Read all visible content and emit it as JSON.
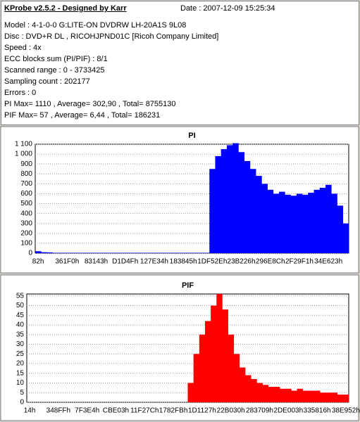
{
  "header": {
    "title": "KProbe v2.5.2 - Designed by Karr",
    "date": "Date : 2007-12-09 15:25:34",
    "lines": [
      "Model : 4-1-0-0 G:LITE-ON DVDRW LH-20A1S   9L08",
      "Disc : DVD+R DL , RICOHJPND01C [Ricoh Company Limited]",
      "Speed : 4x",
      "ECC blocks sum (PI/PIF) : 8/1",
      "Scanned range : 0 - 3733425",
      "Sampling count : 202177",
      "Errors : 0",
      "PI Max= 1110 , Average= 302,90 , Total= 8755130",
      "PIF Max= 57 , Average= 6,44 , Total= 186231"
    ]
  },
  "chart_data": [
    {
      "type": "bar",
      "title": "PI",
      "color": "#0000ff",
      "grid": true,
      "categories": [
        "82h",
        null,
        null,
        null,
        null,
        "361F0h",
        null,
        null,
        null,
        null,
        "83143h",
        null,
        null,
        null,
        null,
        "D1D4Fh",
        null,
        null,
        null,
        null,
        "127E34h",
        null,
        null,
        null,
        null,
        "183845h",
        null,
        null,
        null,
        null,
        "1DF52Eh",
        null,
        null,
        null,
        null,
        "23B226h",
        null,
        null,
        null,
        null,
        "296E8Ch",
        null,
        null,
        null,
        null,
        "2F29F1h",
        null,
        null,
        null,
        null,
        "34E623h",
        null,
        null,
        null
      ],
      "values": [
        20,
        10,
        8,
        4,
        4,
        4,
        4,
        4,
        4,
        4,
        4,
        4,
        4,
        4,
        4,
        4,
        4,
        4,
        4,
        4,
        4,
        4,
        4,
        4,
        4,
        4,
        4,
        4,
        4,
        4,
        850,
        980,
        1050,
        1090,
        1110,
        1020,
        930,
        850,
        780,
        700,
        640,
        600,
        620,
        590,
        580,
        600,
        590,
        610,
        640,
        660,
        690,
        600,
        480,
        300
      ],
      "ylim": [
        0,
        1100
      ],
      "yticks": [
        0,
        100,
        200,
        300,
        400,
        500,
        600,
        700,
        800,
        900,
        {
          "value": 1000,
          "label": "1 000"
        },
        {
          "value": 1100,
          "label": "1 100"
        }
      ]
    },
    {
      "type": "bar",
      "title": "PIF",
      "color": "#ff0000",
      "grid": true,
      "categories": [
        "14h",
        null,
        null,
        null,
        null,
        "348FFh",
        null,
        null,
        null,
        null,
        "7F3E4h",
        null,
        null,
        null,
        null,
        "CBE03h",
        null,
        null,
        null,
        null,
        "11F27Ch",
        null,
        null,
        null,
        null,
        "1782FBh",
        null,
        null,
        null,
        null,
        "1D1127h",
        null,
        null,
        null,
        null,
        "22B030h",
        null,
        null,
        null,
        null,
        "283709h",
        null,
        null,
        null,
        null,
        "2DE003h",
        null,
        null,
        null,
        null,
        "335816h",
        null,
        null,
        null,
        null,
        "38E952h"
      ],
      "values": [
        0,
        0,
        0,
        0,
        0,
        0,
        0,
        0,
        0,
        0,
        0,
        0,
        0,
        0,
        0,
        0,
        0,
        0,
        0,
        0,
        0,
        0,
        0,
        0,
        0,
        0,
        0,
        0,
        10,
        25,
        35,
        42,
        50,
        56,
        48,
        35,
        25,
        18,
        14,
        12,
        10,
        9,
        8,
        8,
        7,
        7,
        6,
        7,
        6,
        6,
        6,
        5,
        5,
        5,
        4,
        4
      ],
      "ylim": [
        0,
        56
      ],
      "yticks": [
        0,
        5,
        10,
        15,
        20,
        25,
        30,
        35,
        40,
        45,
        50,
        55
      ]
    }
  ]
}
